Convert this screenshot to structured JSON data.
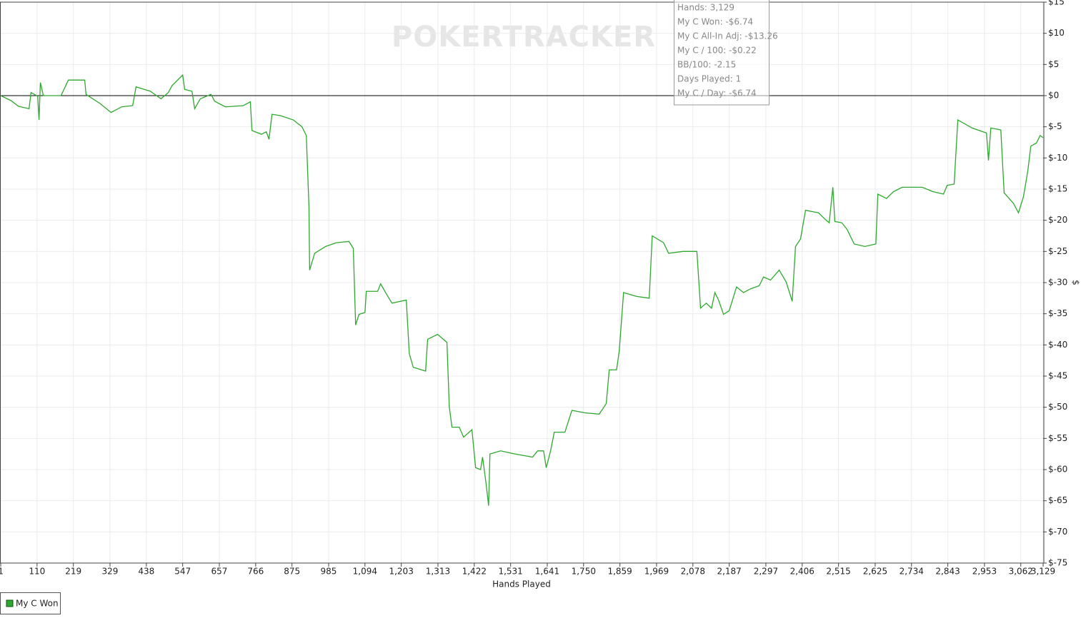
{
  "chart_data": {
    "type": "line",
    "watermark": "POKERTRACKER",
    "x_label": "Hands Played",
    "y_label": "$",
    "xlim": [
      1,
      3129
    ],
    "ylim": [
      -75,
      15
    ],
    "grid": true,
    "xticks": [
      1,
      110,
      219,
      329,
      438,
      547,
      657,
      766,
      875,
      985,
      {
        "value": 1094,
        "label": "1,094"
      },
      {
        "value": 1203,
        "label": "1,203"
      },
      {
        "value": 1313,
        "label": "1,313"
      },
      {
        "value": 1422,
        "label": "1,422"
      },
      {
        "value": 1531,
        "label": "1,531"
      },
      {
        "value": 1641,
        "label": "1,641"
      },
      {
        "value": 1750,
        "label": "1,750"
      },
      {
        "value": 1859,
        "label": "1,859"
      },
      {
        "value": 1969,
        "label": "1,969"
      },
      {
        "value": 2078,
        "label": "2,078"
      },
      {
        "value": 2187,
        "label": "2,187"
      },
      {
        "value": 2297,
        "label": "2,297"
      },
      {
        "value": 2406,
        "label": "2,406"
      },
      {
        "value": 2515,
        "label": "2,515"
      },
      {
        "value": 2625,
        "label": "2,625"
      },
      {
        "value": 2734,
        "label": "2,734"
      },
      {
        "value": 2843,
        "label": "2,843"
      },
      {
        "value": 2953,
        "label": "2,953"
      },
      {
        "value": 3062,
        "label": "3,062"
      },
      {
        "value": 3129,
        "label": "3,129"
      }
    ],
    "yticks": [
      {
        "value": 15,
        "label": "$15"
      },
      {
        "value": 10,
        "label": "$10"
      },
      {
        "value": 5,
        "label": "$5"
      },
      {
        "value": 0,
        "label": "$0"
      },
      {
        "value": -5,
        "label": "$-5"
      },
      {
        "value": -10,
        "label": "$-10"
      },
      {
        "value": -15,
        "label": "$-15"
      },
      {
        "value": -20,
        "label": "$-20"
      },
      {
        "value": -25,
        "label": "$-25"
      },
      {
        "value": -30,
        "label": "$-30"
      },
      {
        "value": -35,
        "label": "$-35"
      },
      {
        "value": -40,
        "label": "$-40"
      },
      {
        "value": -45,
        "label": "$-45"
      },
      {
        "value": -50,
        "label": "$-50"
      },
      {
        "value": -55,
        "label": "$-55"
      },
      {
        "value": -60,
        "label": "$-60"
      },
      {
        "value": -65,
        "label": "$-65"
      },
      {
        "value": -70,
        "label": "$-70"
      },
      {
        "value": -75,
        "label": "$-75"
      }
    ],
    "tooltip": [
      "Hands: 3,129",
      "My C Won: -$6.74",
      "My C All-In Adj: -$13.26",
      "My C / 100: -$0.22",
      "BB/100: -2.15",
      "Days Played: 1",
      "My C / Day: -$6.74"
    ],
    "x": [
      1,
      32,
      54,
      86,
      92,
      112,
      116,
      120,
      129,
      182,
      204,
      253,
      257,
      300,
      332,
      364,
      397,
      407,
      450,
      482,
      504,
      515,
      547,
      553,
      575,
      583,
      600,
      632,
      643,
      675,
      729,
      750,
      755,
      783,
      798,
      806,
      815,
      840,
      879,
      905,
      918,
      926,
      928,
      943,
      976,
      1008,
      1046,
      1059,
      1066,
      1076,
      1094,
      1098,
      1132,
      1141,
      1158,
      1175,
      1218,
      1227,
      1239,
      1276,
      1282,
      1312,
      1340,
      1347,
      1355,
      1377,
      1390,
      1415,
      1426,
      1441,
      1447,
      1458,
      1465,
      1469,
      1501,
      1544,
      1597,
      1612,
      1630,
      1638,
      1651,
      1662,
      1694,
      1715,
      1754,
      1797,
      1818,
      1827,
      1849,
      1857,
      1870,
      1908,
      1947,
      1956,
      1990,
      2005,
      2048,
      2090,
      2101,
      2118,
      2134,
      2144,
      2155,
      2170,
      2187,
      2209,
      2230,
      2251,
      2277,
      2290,
      2311,
      2337,
      2358,
      2376,
      2386,
      2401,
      2416,
      2455,
      2476,
      2487,
      2493,
      2498,
      2504,
      2525,
      2541,
      2562,
      2594,
      2627,
      2633,
      2659,
      2680,
      2706,
      2734,
      2766,
      2798,
      2830,
      2841,
      2862,
      2873,
      2916,
      2959,
      2965,
      2972,
      3002,
      3012,
      3040,
      3055,
      3070,
      3083,
      3092,
      3109,
      3120,
      3129
    ],
    "series": [
      {
        "name": "My C Won",
        "color": "#2ea82e",
        "values": [
          0,
          -0.8,
          -1.7,
          -2.1,
          0.5,
          -0.1,
          -3.9,
          2.1,
          0,
          0,
          2.5,
          2.5,
          0.2,
          -1.3,
          -2.7,
          -1.8,
          -1.6,
          1.4,
          0.7,
          -0.5,
          0.5,
          1.6,
          3.3,
          1.0,
          0.7,
          -2.1,
          -0.5,
          0.2,
          -0.9,
          -1.8,
          -1.6,
          -1.0,
          -5.6,
          -6.2,
          -5.8,
          -7.0,
          -3.0,
          -3.2,
          -3.9,
          -5.0,
          -6.4,
          -17.9,
          -28.0,
          -25.3,
          -24.2,
          -23.6,
          -23.4,
          -24.5,
          -36.8,
          -35.1,
          -34.8,
          -31.4,
          -31.4,
          -30.2,
          -31.8,
          -33.3,
          -32.8,
          -41.4,
          -43.6,
          -44.2,
          -39.1,
          -38.3,
          -39.6,
          -49.9,
          -53.2,
          -53.2,
          -54.8,
          -53.6,
          -59.7,
          -60.0,
          -58.0,
          -62.5,
          -65.8,
          -57.5,
          -57.0,
          -57.5,
          -58.0,
          -57.0,
          -57.0,
          -59.7,
          -57.0,
          -54.0,
          -54.0,
          -50.5,
          -50.9,
          -51.1,
          -49.4,
          -44.0,
          -44.0,
          -41.0,
          -31.6,
          -32.2,
          -32.5,
          -22.5,
          -23.6,
          -25.3,
          -25.0,
          -25.0,
          -34.1,
          -33.3,
          -34.1,
          -31.6,
          -32.8,
          -35.1,
          -34.5,
          -30.7,
          -31.6,
          -31.0,
          -30.5,
          -29.1,
          -29.6,
          -28.0,
          -29.9,
          -33.0,
          -24.2,
          -23.0,
          -18.4,
          -18.8,
          -19.9,
          -20.4,
          -17.3,
          -14.7,
          -20.2,
          -20.4,
          -21.5,
          -23.8,
          -24.2,
          -23.8,
          -15.8,
          -16.5,
          -15.4,
          -14.7,
          -14.7,
          -14.7,
          -15.4,
          -15.8,
          -14.4,
          -14.2,
          -3.9,
          -5.2,
          -6.0,
          -10.4,
          -5.2,
          -5.5,
          -15.6,
          -17.3,
          -18.8,
          -16.2,
          -12.1,
          -8.1,
          -7.6,
          -6.4,
          -6.74
        ]
      }
    ]
  }
}
